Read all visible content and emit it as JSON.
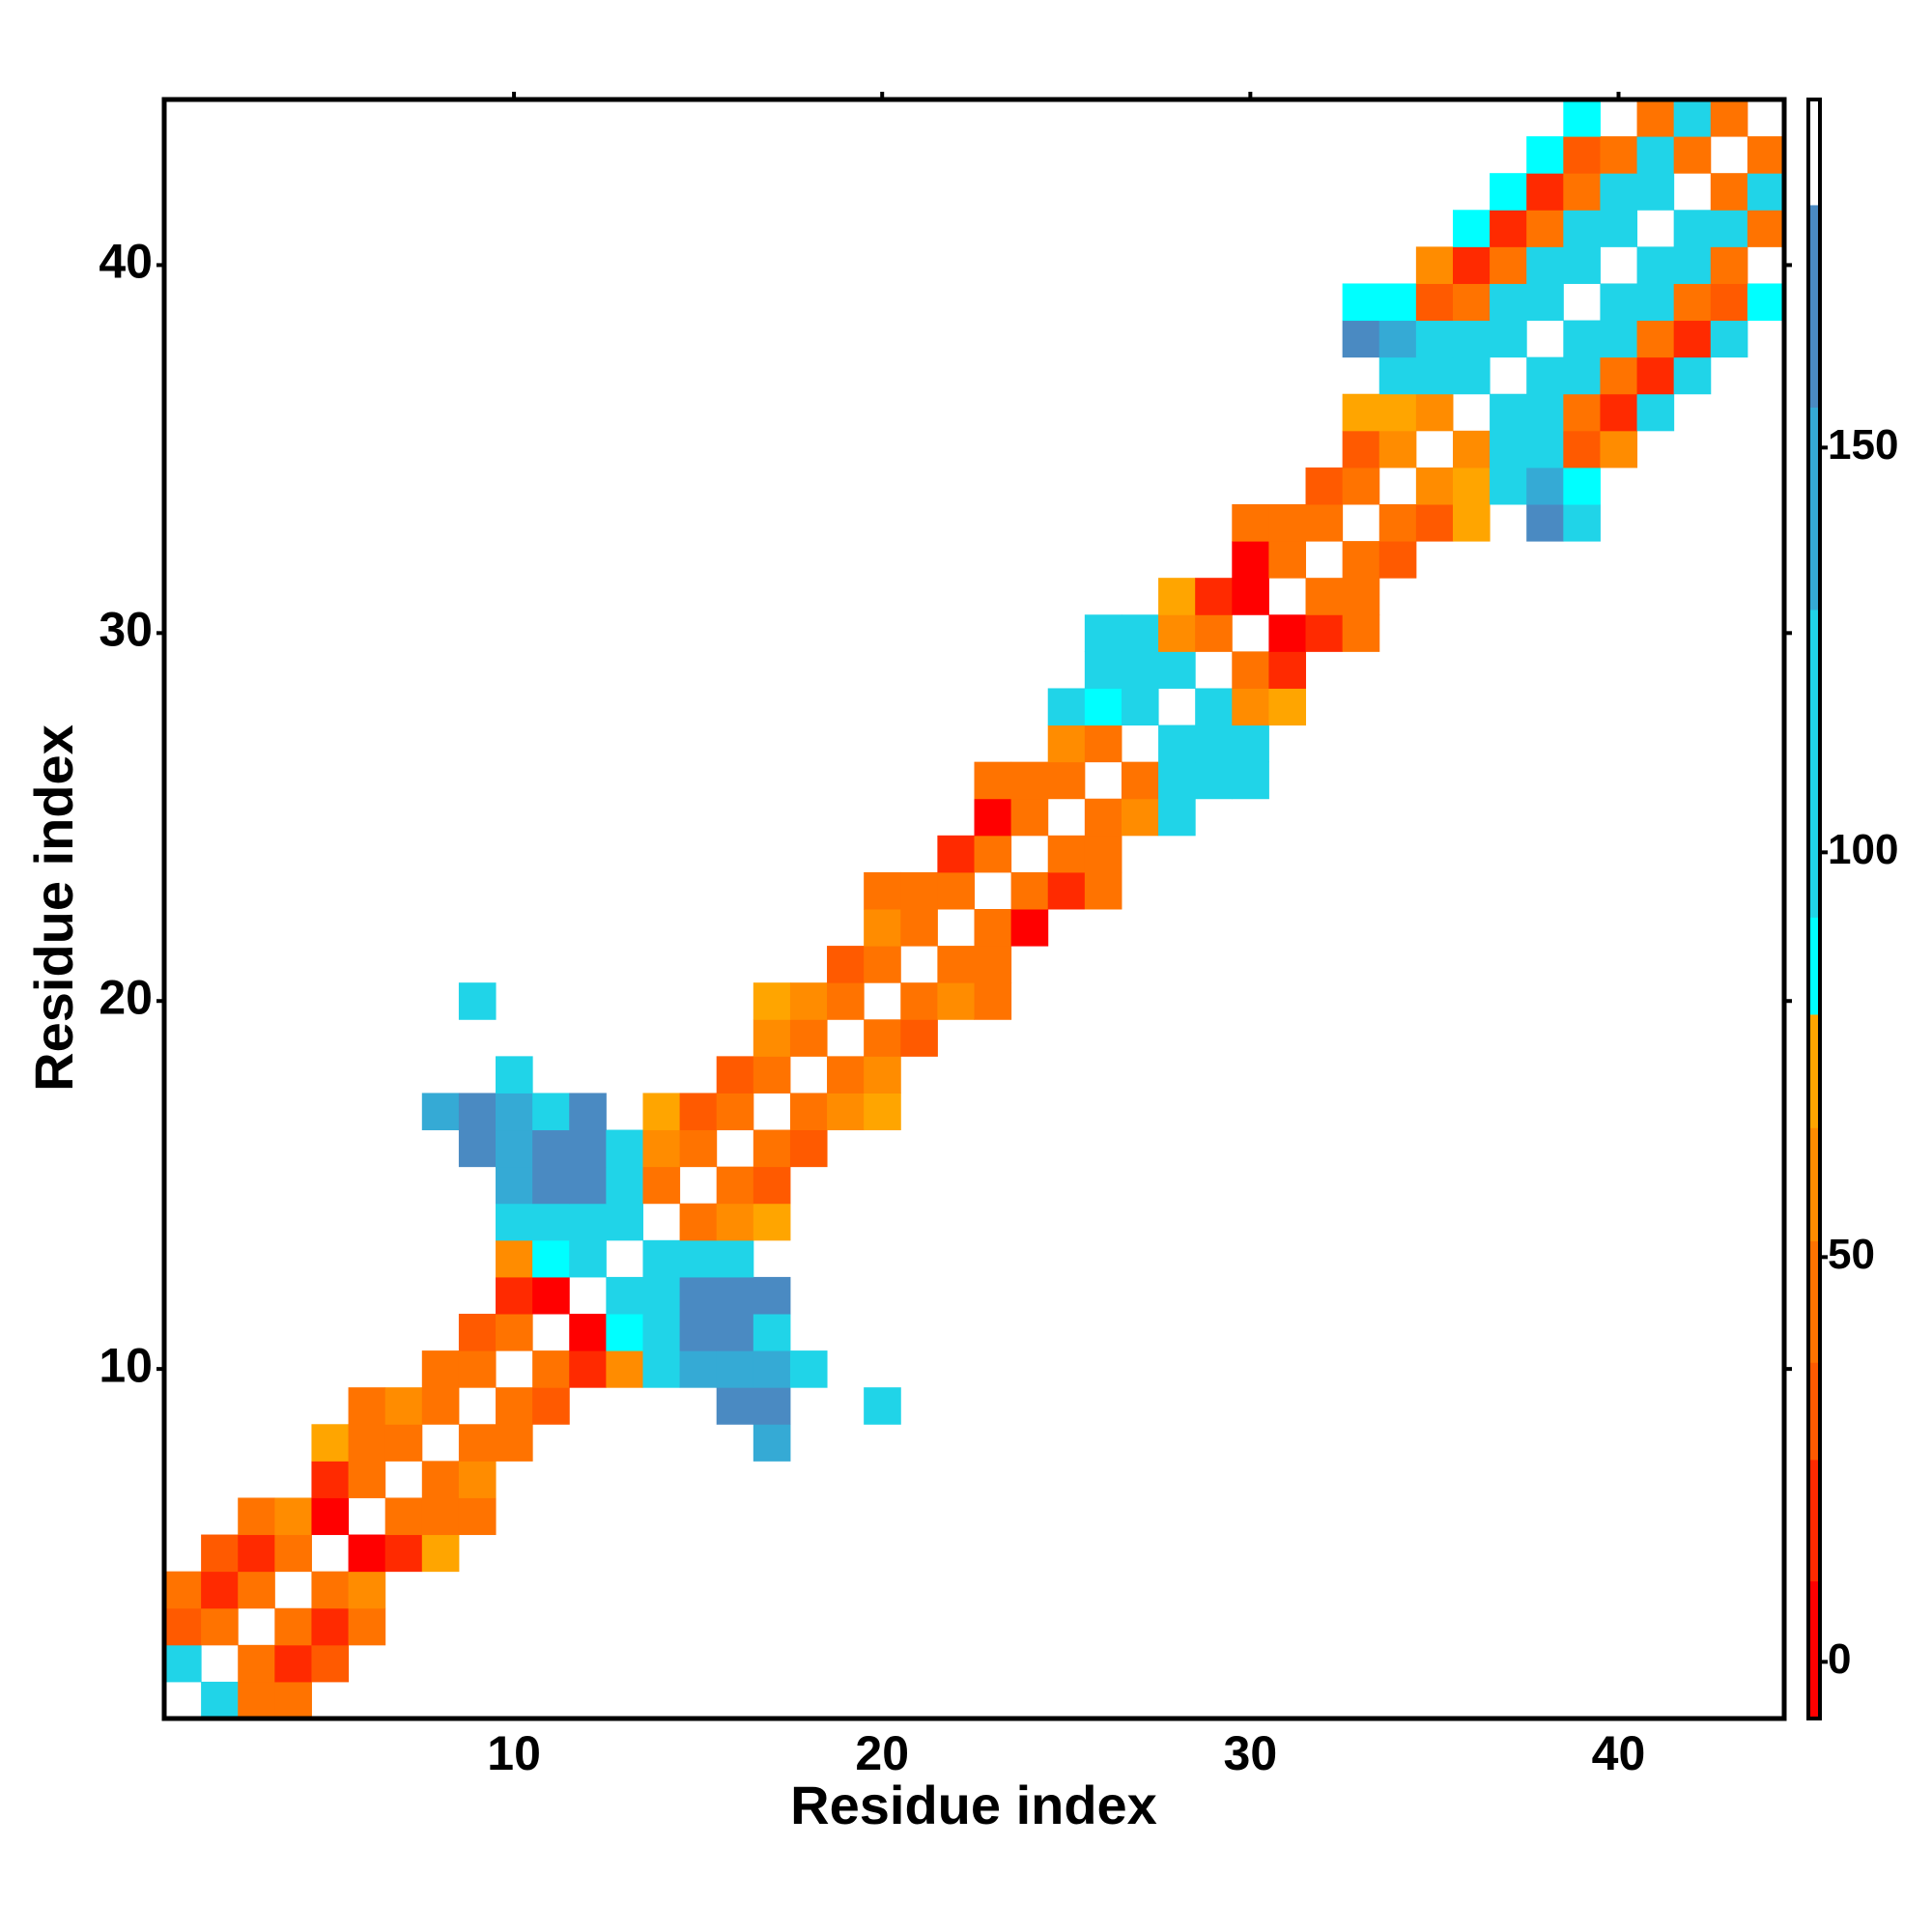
{
  "chart_data": {
    "type": "heatmap",
    "xlabel": "Residue index",
    "ylabel": "Residue index",
    "xlim": [
      0.5,
      44.5
    ],
    "ylim": [
      0.5,
      44.5
    ],
    "xticks": [
      10,
      20,
      30,
      40
    ],
    "yticks": [
      10,
      20,
      30,
      40
    ],
    "clim": [
      -7,
      193
    ],
    "colorbar_ticks": [
      0,
      50,
      100,
      150
    ],
    "colorscale": [
      [
        -7,
        "#ff0000"
      ],
      [
        10,
        "#ff0000"
      ],
      [
        25,
        "#ff2a00"
      ],
      [
        37,
        "#ff5a00"
      ],
      [
        52,
        "#ff7300"
      ],
      [
        66,
        "#ff8c00"
      ],
      [
        80,
        "#ffa500"
      ],
      [
        92,
        "#00ffff"
      ],
      [
        130,
        "#20d4e8"
      ],
      [
        155,
        "#35aad5"
      ],
      [
        180,
        "#4a8ac2"
      ],
      [
        193,
        "#ffffff"
      ]
    ],
    "cells": [
      [
        2,
        1,
        115
      ],
      [
        3,
        1,
        45
      ],
      [
        4,
        1,
        45
      ],
      [
        1,
        2,
        115
      ],
      [
        3,
        2,
        45
      ],
      [
        4,
        2,
        15
      ],
      [
        5,
        2,
        30
      ],
      [
        1,
        3,
        30
      ],
      [
        2,
        3,
        45
      ],
      [
        4,
        3,
        45
      ],
      [
        5,
        3,
        15
      ],
      [
        6,
        3,
        45
      ],
      [
        1,
        4,
        45
      ],
      [
        2,
        4,
        15
      ],
      [
        3,
        4,
        45
      ],
      [
        5,
        4,
        45
      ],
      [
        6,
        4,
        60
      ],
      [
        2,
        5,
        30
      ],
      [
        3,
        5,
        15
      ],
      [
        4,
        5,
        45
      ],
      [
        6,
        5,
        5
      ],
      [
        7,
        5,
        15
      ],
      [
        8,
        5,
        72
      ],
      [
        3,
        6,
        45
      ],
      [
        4,
        6,
        60
      ],
      [
        5,
        6,
        5
      ],
      [
        7,
        6,
        45
      ],
      [
        8,
        6,
        45
      ],
      [
        9,
        6,
        45
      ],
      [
        5,
        7,
        15
      ],
      [
        6,
        7,
        45
      ],
      [
        8,
        7,
        45
      ],
      [
        9,
        7,
        60
      ],
      [
        5,
        8,
        72
      ],
      [
        6,
        8,
        45
      ],
      [
        7,
        8,
        45
      ],
      [
        9,
        8,
        45
      ],
      [
        10,
        8,
        45
      ],
      [
        17,
        8,
        145
      ],
      [
        6,
        9,
        45
      ],
      [
        7,
        9,
        60
      ],
      [
        8,
        9,
        45
      ],
      [
        10,
        9,
        45
      ],
      [
        11,
        9,
        30
      ],
      [
        16,
        9,
        165
      ],
      [
        17,
        9,
        165
      ],
      [
        20,
        9,
        115
      ],
      [
        8,
        10,
        45
      ],
      [
        9,
        10,
        45
      ],
      [
        11,
        10,
        45
      ],
      [
        12,
        10,
        15
      ],
      [
        13,
        10,
        60
      ],
      [
        14,
        10,
        115
      ],
      [
        15,
        10,
        145
      ],
      [
        16,
        10,
        145
      ],
      [
        17,
        10,
        145
      ],
      [
        18,
        10,
        115
      ],
      [
        9,
        11,
        30
      ],
      [
        10,
        11,
        45
      ],
      [
        12,
        11,
        5
      ],
      [
        13,
        11,
        85
      ],
      [
        14,
        11,
        115
      ],
      [
        15,
        11,
        165
      ],
      [
        16,
        11,
        165
      ],
      [
        17,
        11,
        115
      ],
      [
        10,
        12,
        15
      ],
      [
        11,
        12,
        5
      ],
      [
        13,
        12,
        115
      ],
      [
        14,
        12,
        115
      ],
      [
        15,
        12,
        165
      ],
      [
        16,
        12,
        165
      ],
      [
        17,
        12,
        165
      ],
      [
        10,
        13,
        60
      ],
      [
        11,
        13,
        85
      ],
      [
        12,
        13,
        115
      ],
      [
        14,
        13,
        115
      ],
      [
        15,
        13,
        115
      ],
      [
        16,
        13,
        115
      ],
      [
        10,
        14,
        115
      ],
      [
        11,
        14,
        115
      ],
      [
        12,
        14,
        115
      ],
      [
        13,
        14,
        115
      ],
      [
        15,
        14,
        45
      ],
      [
        16,
        14,
        60
      ],
      [
        17,
        14,
        72
      ],
      [
        10,
        15,
        145
      ],
      [
        11,
        15,
        165
      ],
      [
        12,
        15,
        165
      ],
      [
        13,
        15,
        115
      ],
      [
        14,
        15,
        45
      ],
      [
        16,
        15,
        45
      ],
      [
        17,
        15,
        30
      ],
      [
        9,
        16,
        165
      ],
      [
        10,
        16,
        145
      ],
      [
        11,
        16,
        165
      ],
      [
        12,
        16,
        165
      ],
      [
        13,
        16,
        115
      ],
      [
        14,
        16,
        60
      ],
      [
        15,
        16,
        45
      ],
      [
        17,
        16,
        45
      ],
      [
        18,
        16,
        30
      ],
      [
        8,
        17,
        145
      ],
      [
        9,
        17,
        165
      ],
      [
        10,
        17,
        145
      ],
      [
        11,
        17,
        115
      ],
      [
        12,
        17,
        165
      ],
      [
        14,
        17,
        72
      ],
      [
        15,
        17,
        30
      ],
      [
        16,
        17,
        45
      ],
      [
        18,
        17,
        45
      ],
      [
        19,
        17,
        60
      ],
      [
        20,
        17,
        72
      ],
      [
        10,
        18,
        115
      ],
      [
        16,
        18,
        30
      ],
      [
        17,
        18,
        45
      ],
      [
        19,
        18,
        45
      ],
      [
        20,
        18,
        60
      ],
      [
        17,
        19,
        60
      ],
      [
        18,
        19,
        45
      ],
      [
        20,
        19,
        45
      ],
      [
        21,
        19,
        30
      ],
      [
        9,
        20,
        115
      ],
      [
        17,
        20,
        72
      ],
      [
        18,
        20,
        60
      ],
      [
        19,
        20,
        45
      ],
      [
        21,
        20,
        45
      ],
      [
        22,
        20,
        60
      ],
      [
        23,
        20,
        45
      ],
      [
        19,
        21,
        30
      ],
      [
        20,
        21,
        45
      ],
      [
        22,
        21,
        45
      ],
      [
        23,
        21,
        45
      ],
      [
        20,
        22,
        60
      ],
      [
        21,
        22,
        45
      ],
      [
        23,
        22,
        45
      ],
      [
        24,
        22,
        5
      ],
      [
        20,
        23,
        45
      ],
      [
        21,
        23,
        45
      ],
      [
        22,
        23,
        45
      ],
      [
        24,
        23,
        45
      ],
      [
        25,
        23,
        15
      ],
      [
        26,
        23,
        45
      ],
      [
        22,
        24,
        15
      ],
      [
        23,
        24,
        45
      ],
      [
        25,
        24,
        45
      ],
      [
        26,
        24,
        45
      ],
      [
        23,
        25,
        5
      ],
      [
        24,
        25,
        45
      ],
      [
        26,
        25,
        45
      ],
      [
        27,
        25,
        60
      ],
      [
        28,
        25,
        115
      ],
      [
        23,
        26,
        45
      ],
      [
        24,
        26,
        45
      ],
      [
        25,
        26,
        45
      ],
      [
        27,
        26,
        45
      ],
      [
        28,
        26,
        115
      ],
      [
        29,
        26,
        115
      ],
      [
        30,
        26,
        115
      ],
      [
        25,
        27,
        60
      ],
      [
        26,
        27,
        45
      ],
      [
        28,
        27,
        115
      ],
      [
        29,
        27,
        115
      ],
      [
        30,
        27,
        115
      ],
      [
        25,
        28,
        115
      ],
      [
        26,
        28,
        85
      ],
      [
        27,
        28,
        115
      ],
      [
        29,
        28,
        115
      ],
      [
        30,
        28,
        60
      ],
      [
        31,
        28,
        72
      ],
      [
        26,
        29,
        115
      ],
      [
        27,
        29,
        115
      ],
      [
        28,
        29,
        115
      ],
      [
        30,
        29,
        45
      ],
      [
        31,
        29,
        15
      ],
      [
        26,
        30,
        115
      ],
      [
        27,
        30,
        115
      ],
      [
        28,
        30,
        60
      ],
      [
        29,
        30,
        45
      ],
      [
        31,
        30,
        5
      ],
      [
        32,
        30,
        15
      ],
      [
        33,
        30,
        45
      ],
      [
        28,
        31,
        72
      ],
      [
        29,
        31,
        15
      ],
      [
        30,
        31,
        5
      ],
      [
        32,
        31,
        45
      ],
      [
        33,
        31,
        45
      ],
      [
        30,
        32,
        5
      ],
      [
        31,
        32,
        45
      ],
      [
        33,
        32,
        45
      ],
      [
        34,
        32,
        30
      ],
      [
        30,
        33,
        45
      ],
      [
        31,
        33,
        45
      ],
      [
        32,
        33,
        45
      ],
      [
        34,
        33,
        45
      ],
      [
        35,
        33,
        30
      ],
      [
        36,
        33,
        72
      ],
      [
        38,
        33,
        165
      ],
      [
        39,
        33,
        115
      ],
      [
        32,
        34,
        30
      ],
      [
        33,
        34,
        45
      ],
      [
        35,
        34,
        60
      ],
      [
        36,
        34,
        72
      ],
      [
        37,
        34,
        115
      ],
      [
        38,
        34,
        145
      ],
      [
        39,
        34,
        85
      ],
      [
        33,
        35,
        30
      ],
      [
        34,
        35,
        60
      ],
      [
        36,
        35,
        60
      ],
      [
        37,
        35,
        115
      ],
      [
        38,
        35,
        115
      ],
      [
        39,
        35,
        30
      ],
      [
        40,
        35,
        60
      ],
      [
        33,
        36,
        72
      ],
      [
        34,
        36,
        72
      ],
      [
        35,
        36,
        60
      ],
      [
        37,
        36,
        115
      ],
      [
        38,
        36,
        115
      ],
      [
        39,
        36,
        45
      ],
      [
        40,
        36,
        15
      ],
      [
        41,
        36,
        115
      ],
      [
        34,
        37,
        115
      ],
      [
        35,
        37,
        115
      ],
      [
        36,
        37,
        115
      ],
      [
        38,
        37,
        115
      ],
      [
        39,
        37,
        115
      ],
      [
        40,
        37,
        45
      ],
      [
        41,
        37,
        15
      ],
      [
        42,
        37,
        115
      ],
      [
        33,
        38,
        165
      ],
      [
        34,
        38,
        145
      ],
      [
        35,
        38,
        115
      ],
      [
        36,
        38,
        115
      ],
      [
        37,
        38,
        115
      ],
      [
        39,
        38,
        115
      ],
      [
        40,
        38,
        115
      ],
      [
        41,
        38,
        45
      ],
      [
        42,
        38,
        15
      ],
      [
        43,
        38,
        115
      ],
      [
        33,
        39,
        85
      ],
      [
        34,
        39,
        85
      ],
      [
        35,
        39,
        30
      ],
      [
        36,
        39,
        45
      ],
      [
        37,
        39,
        115
      ],
      [
        38,
        39,
        115
      ],
      [
        40,
        39,
        115
      ],
      [
        41,
        39,
        115
      ],
      [
        42,
        39,
        45
      ],
      [
        43,
        39,
        30
      ],
      [
        44,
        39,
        85
      ],
      [
        35,
        40,
        60
      ],
      [
        36,
        40,
        15
      ],
      [
        37,
        40,
        45
      ],
      [
        38,
        40,
        115
      ],
      [
        39,
        40,
        115
      ],
      [
        41,
        40,
        115
      ],
      [
        42,
        40,
        115
      ],
      [
        43,
        40,
        45
      ],
      [
        36,
        41,
        85
      ],
      [
        37,
        41,
        15
      ],
      [
        38,
        41,
        45
      ],
      [
        39,
        41,
        115
      ],
      [
        40,
        41,
        115
      ],
      [
        42,
        41,
        115
      ],
      [
        43,
        41,
        115
      ],
      [
        44,
        41,
        45
      ],
      [
        37,
        42,
        85
      ],
      [
        38,
        42,
        15
      ],
      [
        39,
        42,
        45
      ],
      [
        40,
        42,
        115
      ],
      [
        41,
        42,
        115
      ],
      [
        43,
        42,
        45
      ],
      [
        44,
        42,
        115
      ],
      [
        38,
        43,
        85
      ],
      [
        39,
        43,
        30
      ],
      [
        40,
        43,
        45
      ],
      [
        41,
        43,
        115
      ],
      [
        42,
        43,
        45
      ],
      [
        44,
        43,
        45
      ],
      [
        39,
        44,
        85
      ],
      [
        41,
        44,
        45
      ],
      [
        42,
        44,
        115
      ],
      [
        43,
        44,
        45
      ]
    ]
  }
}
